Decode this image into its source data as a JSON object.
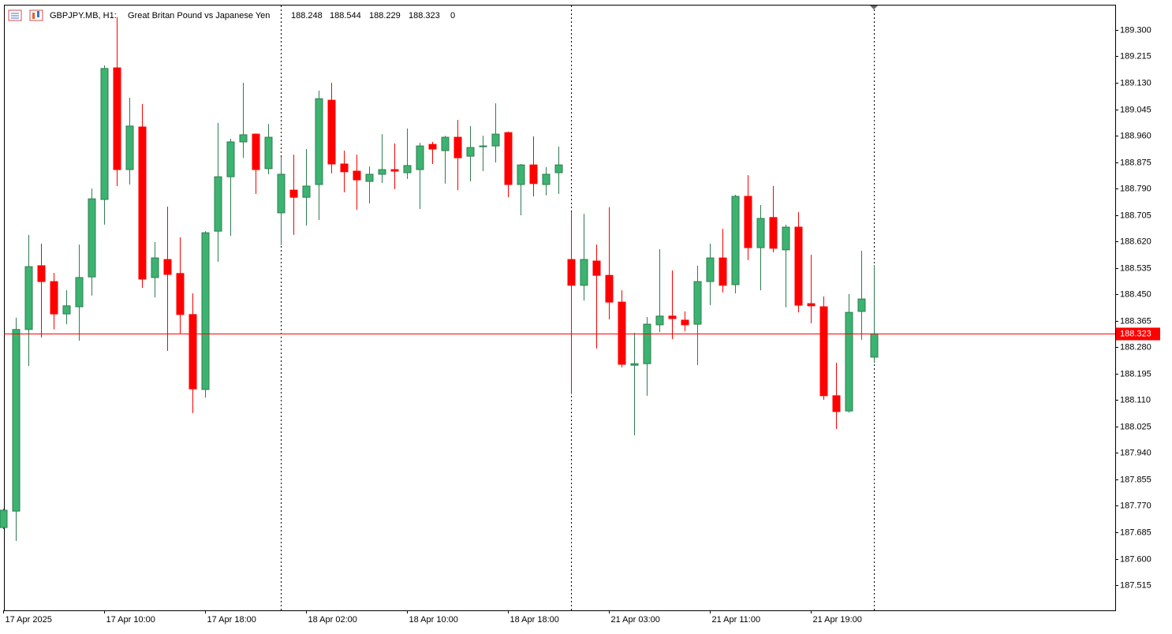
{
  "chart_data": {
    "type": "candlestick",
    "title": "GBPJPY.MB, H1:",
    "subtitle": "Great Britan Pound vs Japanese Yen",
    "header_extra": 0,
    "up_color": "#3cb371",
    "down_color": "#ff0000",
    "price_line_color": "#ff0000",
    "grid": false,
    "categories": [
      "17 Apr 2025",
      null,
      null,
      null,
      null,
      null,
      null,
      null,
      "17 Apr 10:00",
      null,
      null,
      null,
      null,
      null,
      null,
      null,
      "17 Apr 18:00",
      null,
      null,
      null,
      null,
      null,
      null,
      null,
      "18 Apr 02:00",
      null,
      null,
      null,
      null,
      null,
      null,
      null,
      "18 Apr 10:00",
      null,
      null,
      null,
      null,
      null,
      null,
      null,
      "18 Apr 18:00",
      null,
      null,
      null,
      null,
      null,
      null,
      null,
      "21 Apr 03:00",
      null,
      null,
      null,
      null,
      null,
      null,
      null,
      "21 Apr 11:00",
      null,
      null,
      null,
      null,
      null,
      null,
      null,
      "21 Apr 19:00",
      null,
      null,
      null,
      null,
      null
    ],
    "open": [
      187.7,
      187.753,
      188.337,
      188.542,
      188.491,
      188.387,
      188.41,
      188.506,
      188.755,
      189.178,
      188.851,
      188.988,
      188.504,
      188.562,
      188.517,
      188.385,
      188.144,
      188.653,
      188.828,
      188.94,
      188.965,
      188.854,
      188.712,
      188.785,
      188.762,
      188.803,
      189.074,
      188.869,
      188.846,
      188.813,
      188.836,
      188.851,
      188.841,
      188.851,
      188.932,
      188.912,
      188.955,
      188.894,
      188.925,
      188.927,
      188.97,
      188.803,
      188.866,
      188.803,
      188.841,
      188.562,
      188.479,
      188.557,
      188.511,
      188.425,
      188.222,
      188.227,
      188.352,
      188.38,
      188.367,
      188.354,
      188.491,
      188.567,
      188.481,
      188.765,
      188.6,
      188.697,
      188.593,
      188.666,
      188.42,
      188.41,
      188.124,
      188.075,
      188.395,
      188.248
    ],
    "high": [
      187.761,
      188.375,
      188.641,
      188.613,
      188.519,
      188.463,
      188.61,
      188.79,
      189.186,
      189.341,
      189.082,
      189.062,
      188.618,
      188.732,
      188.633,
      188.453,
      188.653,
      189.001,
      188.95,
      189.13,
      188.967,
      188.998,
      188.892,
      188.899,
      188.917,
      189.105,
      189.13,
      188.912,
      188.899,
      188.861,
      188.965,
      188.935,
      188.983,
      188.937,
      188.94,
      188.96,
      189.011,
      188.991,
      188.96,
      189.064,
      188.973,
      188.869,
      188.958,
      188.859,
      188.925,
      188.714,
      188.709,
      188.61,
      188.73,
      188.463,
      188.326,
      188.377,
      188.595,
      188.527,
      188.395,
      188.542,
      188.613,
      188.661,
      188.77,
      188.833,
      188.737,
      188.798,
      188.674,
      188.714,
      188.577,
      188.443,
      188.23,
      188.451,
      188.59,
      188.544
    ],
    "low": [
      187.695,
      187.657,
      188.22,
      188.311,
      188.337,
      188.354,
      188.301,
      188.446,
      188.674,
      188.798,
      188.803,
      188.471,
      188.44,
      188.268,
      188.324,
      188.068,
      188.118,
      188.555,
      188.638,
      188.889,
      188.773,
      188.836,
      188.608,
      188.641,
      188.671,
      188.689,
      188.839,
      188.778,
      188.722,
      188.742,
      188.808,
      188.788,
      188.821,
      188.724,
      188.869,
      188.806,
      188.785,
      188.813,
      188.846,
      188.874,
      188.762,
      188.704,
      188.765,
      188.768,
      188.773,
      188.129,
      188.43,
      188.276,
      188.369,
      188.215,
      187.997,
      188.124,
      188.329,
      188.306,
      188.331,
      188.222,
      188.415,
      188.456,
      188.453,
      188.56,
      188.463,
      188.585,
      188.408,
      188.392,
      188.357,
      188.111,
      188.017,
      188.07,
      188.304,
      188.229
    ],
    "close": [
      187.756,
      188.337,
      188.539,
      188.491,
      188.387,
      188.413,
      188.504,
      188.757,
      189.176,
      188.851,
      188.991,
      188.499,
      188.567,
      188.514,
      188.385,
      188.146,
      188.648,
      188.828,
      188.94,
      188.963,
      188.851,
      188.955,
      188.836,
      188.762,
      188.798,
      189.079,
      188.869,
      188.844,
      188.818,
      188.836,
      188.851,
      188.846,
      188.864,
      188.927,
      188.917,
      188.955,
      188.889,
      188.922,
      188.927,
      188.965,
      188.803,
      188.866,
      188.806,
      188.836,
      188.866,
      188.479,
      188.562,
      188.511,
      188.425,
      188.225,
      188.227,
      188.354,
      188.38,
      188.372,
      188.352,
      188.491,
      188.567,
      188.479,
      188.765,
      188.6,
      188.694,
      188.598,
      188.666,
      188.415,
      188.413,
      188.124,
      188.073,
      188.392,
      188.435,
      188.323
    ],
    "ylim": [
      187.434,
      189.381
    ],
    "yticks": [
      187.515,
      {
        "value": 187.6,
        "label": "187.600"
      },
      187.685,
      {
        "value": 187.77,
        "label": "187.770"
      },
      187.855,
      {
        "value": 187.94,
        "label": "187.940"
      },
      188.025,
      {
        "value": 188.11,
        "label": "188.110"
      },
      188.195,
      {
        "value": 188.28,
        "label": "188.280"
      },
      188.365,
      {
        "value": 188.45,
        "label": "188.450"
      },
      188.535,
      {
        "value": 188.62,
        "label": "188.620"
      },
      188.705,
      {
        "value": 188.79,
        "label": "188.790"
      },
      188.875,
      {
        "value": 188.96,
        "label": "188.960"
      },
      189.045,
      {
        "value": 189.13,
        "label": "189.130"
      },
      189.215,
      {
        "value": 189.3,
        "label": "189.300"
      }
    ]
  }
}
